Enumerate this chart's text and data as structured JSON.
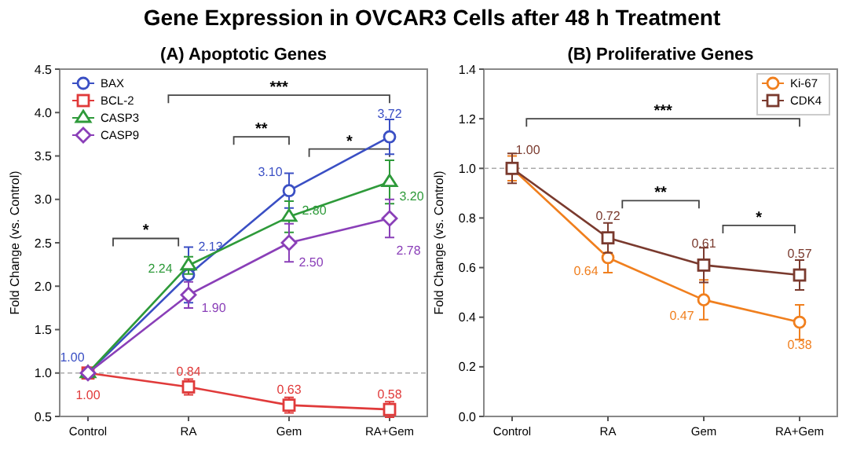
{
  "chart_data": [
    {
      "type": "line",
      "title": "Gene Expression in OVCAR3 Cells after 48 h Treatment",
      "subtitle": "(A) Apoptotic Genes",
      "ylabel": "Fold Change (vs. Control)",
      "categories": [
        "Control",
        "RA",
        "Gem",
        "RA+Gem"
      ],
      "ylim": [
        0.5,
        4.5
      ],
      "yticks": [
        {
          "value": 0.5,
          "label": "0.5"
        },
        {
          "value": 1,
          "label": "1.0"
        },
        {
          "value": 1.5,
          "label": "1.5"
        },
        {
          "value": 2,
          "label": "2.0"
        },
        {
          "value": 2.5,
          "label": "2.5"
        },
        {
          "value": 3,
          "label": "3.0"
        },
        {
          "value": 3.5,
          "label": "3.5"
        },
        {
          "value": 4,
          "label": "4.0"
        },
        {
          "value": 4.5,
          "label": "4.5"
        }
      ],
      "grid": false,
      "legend": "top left",
      "ref_lines": [
        {
          "axis": "y",
          "value": 1,
          "color": "#aaaaaa",
          "line_style": "dashed"
        }
      ],
      "annotations": [
        "*",
        "**",
        "*",
        "***"
      ],
      "series": [
        {
          "name": "BAX",
          "color": "#3a4fc4",
          "marker": "circle",
          "values": [
            1.0,
            2.13,
            3.1,
            3.72
          ],
          "errors": [
            null,
            0.32,
            0.2,
            0.2
          ],
          "value_labels": [
            "1.00",
            "2.13",
            "3.10",
            "3.72"
          ]
        },
        {
          "name": "BCL-2",
          "color": "#e03a3a",
          "marker": "square",
          "values": [
            1.0,
            0.84,
            0.63,
            0.58
          ],
          "errors": [
            null,
            0.09,
            0.09,
            0.09
          ],
          "value_labels": [
            "1.00",
            "0.84",
            "0.63",
            "0.58"
          ]
        },
        {
          "name": "CASP3",
          "color": "#2e9a3a",
          "marker": "triangle",
          "values": [
            1.0,
            2.24,
            2.8,
            3.2
          ],
          "errors": [
            null,
            0.1,
            0.18,
            0.25
          ],
          "value_labels": [
            null,
            "2.24",
            "2.80",
            "3.20"
          ]
        },
        {
          "name": "CASP9",
          "color": "#8a3fb8",
          "marker": "diamond",
          "values": [
            1.0,
            1.9,
            2.5,
            2.78
          ],
          "errors": [
            null,
            0.15,
            0.22,
            0.22
          ],
          "value_labels": [
            null,
            "1.90",
            "2.50",
            "2.78"
          ]
        }
      ]
    },
    {
      "type": "line",
      "subtitle": "(B) Proliferative Genes",
      "ylabel": "Fold Change (vs. Control)",
      "categories": [
        "Control",
        "RA",
        "Gem",
        "RA+Gem"
      ],
      "ylim": [
        0,
        1.4
      ],
      "yticks": [
        {
          "value": 0,
          "label": "0.0"
        },
        {
          "value": 0.2,
          "label": "0.2"
        },
        {
          "value": 0.4,
          "label": "0.4"
        },
        {
          "value": 0.6,
          "label": "0.6"
        },
        {
          "value": 0.8,
          "label": "0.8"
        },
        {
          "value": 1,
          "label": "1.0"
        },
        {
          "value": 1.2,
          "label": "1.2"
        },
        {
          "value": 1.4,
          "label": "1.4"
        }
      ],
      "grid": false,
      "legend": "top right",
      "ref_lines": [
        {
          "axis": "y",
          "value": 1,
          "color": "#aaaaaa",
          "line_style": "dashed"
        }
      ],
      "annotations": [
        "***",
        "**",
        "*"
      ],
      "series": [
        {
          "name": "Ki-67",
          "color": "#f07f1e",
          "marker": "circle",
          "values": [
            1.0,
            0.64,
            0.47,
            0.38
          ],
          "errors": [
            0.05,
            0.06,
            0.08,
            0.07
          ],
          "value_labels": [
            null,
            "0.64",
            "0.47",
            "0.38"
          ]
        },
        {
          "name": "CDK4",
          "color": "#7a3a2e",
          "marker": "square",
          "values": [
            1.0,
            0.72,
            0.61,
            0.57
          ],
          "errors": [
            0.06,
            0.06,
            0.07,
            0.06
          ],
          "value_labels": [
            "1.00",
            "0.72",
            "0.61",
            "0.57"
          ]
        }
      ]
    }
  ]
}
